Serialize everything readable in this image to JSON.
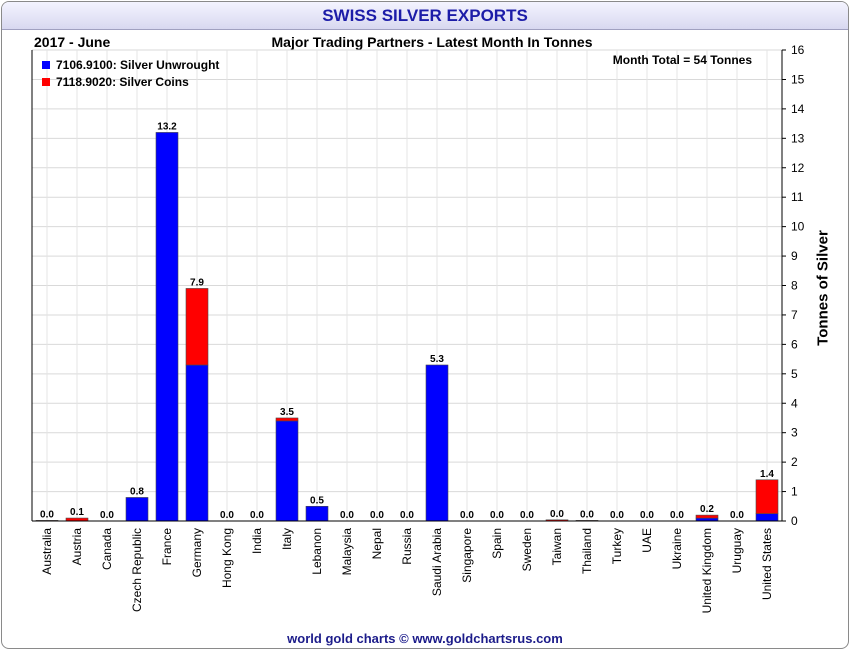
{
  "chart_data": {
    "type": "bar",
    "stacked": true,
    "title": "SWISS SILVER EXPORTS",
    "period": "2017 - June",
    "subtitle": "Major Trading Partners - Latest Month In Tonnes",
    "annotation": "Month Total = 54 Tonnes",
    "ylabel": "Tonnes of Silver",
    "ylim": [
      0,
      16
    ],
    "yticks": [
      0,
      1,
      2,
      3,
      4,
      5,
      6,
      7,
      8,
      9,
      10,
      11,
      12,
      13,
      14,
      15,
      16
    ],
    "grid": true,
    "legend_position": "top-left",
    "categories": [
      "Australia",
      "Austria",
      "Canada",
      "Czech Republic",
      "France",
      "Germany",
      "Hong Kong",
      "India",
      "Italy",
      "Lebanon",
      "Malaysia",
      "Nepal",
      "Russia",
      "Saudi Arabia",
      "Singapore",
      "Spain",
      "Sweden",
      "Taiwan",
      "Thailand",
      "Turkey",
      "UAE",
      "Ukraine",
      "United Kingdom",
      "Uruguay",
      "United States"
    ],
    "series": [
      {
        "name": "7106.9100: Silver Unwrought",
        "color": "#0000ff",
        "values": [
          0,
          0,
          0,
          0.8,
          13.2,
          5.3,
          0,
          0,
          3.4,
          0.5,
          0,
          0,
          0,
          5.3,
          0,
          0,
          0,
          0,
          0,
          0,
          0,
          0,
          0.1,
          0,
          0.25
        ]
      },
      {
        "name": "7118.9020: Silver Coins",
        "color": "#ff0000",
        "values": [
          0.02,
          0.1,
          0,
          0,
          0,
          2.6,
          0,
          0,
          0.1,
          0,
          0,
          0,
          0,
          0,
          0,
          0,
          0,
          0.04,
          0.02,
          0,
          0,
          0,
          0.1,
          0,
          1.15
        ]
      }
    ],
    "totals_labels": [
      "0.0",
      "0.1",
      "0.0",
      "0.8",
      "13.2",
      "7.9",
      "0.0",
      "0.0",
      "3.5",
      "0.5",
      "0.0",
      "0.0",
      "0.0",
      "5.3",
      "0.0",
      "0.0",
      "0.0",
      "0.0",
      "0.0",
      "0.0",
      "0.0",
      "0.0",
      "0.2",
      "0.0",
      "1.4"
    ]
  },
  "footer": "world gold charts © www.goldchartsrus.com"
}
